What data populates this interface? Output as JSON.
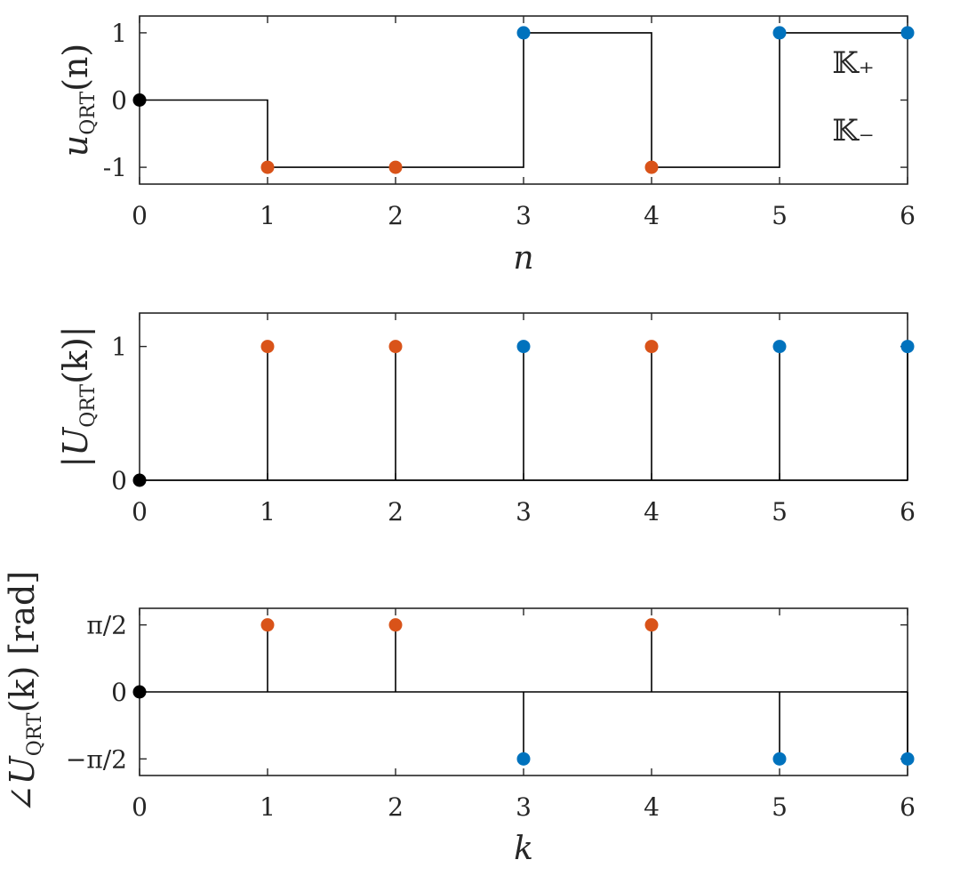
{
  "colors": {
    "k_plus": "#0072BD",
    "k_minus": "#D95319",
    "origin": "#000000",
    "axis": "#262626"
  },
  "legend": {
    "k_plus_label": "𝕂₊",
    "k_minus_label": "𝕂₋",
    "placement": "right inside top panel"
  },
  "chart_data": [
    {
      "type": "line",
      "subtype": "stairs-with-markers",
      "ylabel_main": "u",
      "ylabel_sub": "QRT",
      "ylabel_arg": "(n)",
      "xlabel": "n",
      "x": [
        0,
        1,
        2,
        3,
        4,
        5,
        6
      ],
      "y": [
        0,
        -1,
        -1,
        1,
        -1,
        1,
        1
      ],
      "xlim": [
        0,
        6
      ],
      "ylim": [
        -1.25,
        1.25
      ],
      "xticks": [
        "0",
        "1",
        "2",
        "3",
        "4",
        "5",
        "6"
      ],
      "yticks": [
        {
          "value": 1,
          "label": "1"
        },
        {
          "value": 0,
          "label": "0"
        },
        {
          "value": -1,
          "label": "-1"
        }
      ],
      "marker_group": [
        "origin",
        "k_minus",
        "k_minus",
        "k_plus",
        "k_minus",
        "k_plus",
        "k_plus"
      ]
    },
    {
      "type": "stem",
      "ylabel_main": "|U",
      "ylabel_sub": "QRT",
      "ylabel_arg": "(k)|",
      "xlabel": "",
      "x": [
        0,
        1,
        2,
        3,
        4,
        5,
        6
      ],
      "y": [
        0,
        1,
        1,
        1,
        1,
        1,
        1
      ],
      "xlim": [
        0,
        6
      ],
      "ylim": [
        0,
        1.25
      ],
      "xticks": [
        "0",
        "1",
        "2",
        "3",
        "4",
        "5",
        "6"
      ],
      "yticks": [
        {
          "value": 1,
          "label": "1"
        },
        {
          "value": 0,
          "label": "0"
        }
      ],
      "marker_group": [
        "origin",
        "k_minus",
        "k_minus",
        "k_plus",
        "k_minus",
        "k_plus",
        "k_plus"
      ]
    },
    {
      "type": "stem",
      "ylabel_main": "∠U",
      "ylabel_sub": "QRT",
      "ylabel_arg": "(k) [rad]",
      "xlabel": "k",
      "x": [
        0,
        1,
        2,
        3,
        4,
        5,
        6
      ],
      "y": [
        0,
        1.5708,
        1.5708,
        -1.5708,
        1.5708,
        -1.5708,
        -1.5708
      ],
      "xlim": [
        0,
        6
      ],
      "ylim": [
        -1.96,
        1.96
      ],
      "xticks": [
        "0",
        "1",
        "2",
        "3",
        "4",
        "5",
        "6"
      ],
      "yticks": [
        {
          "value": 1.5708,
          "label": "π/2"
        },
        {
          "value": 0,
          "label": "0"
        },
        {
          "value": -1.5708,
          "label": "−π/2"
        }
      ],
      "marker_group": [
        "origin",
        "k_minus",
        "k_minus",
        "k_plus",
        "k_minus",
        "k_plus",
        "k_plus"
      ]
    }
  ]
}
